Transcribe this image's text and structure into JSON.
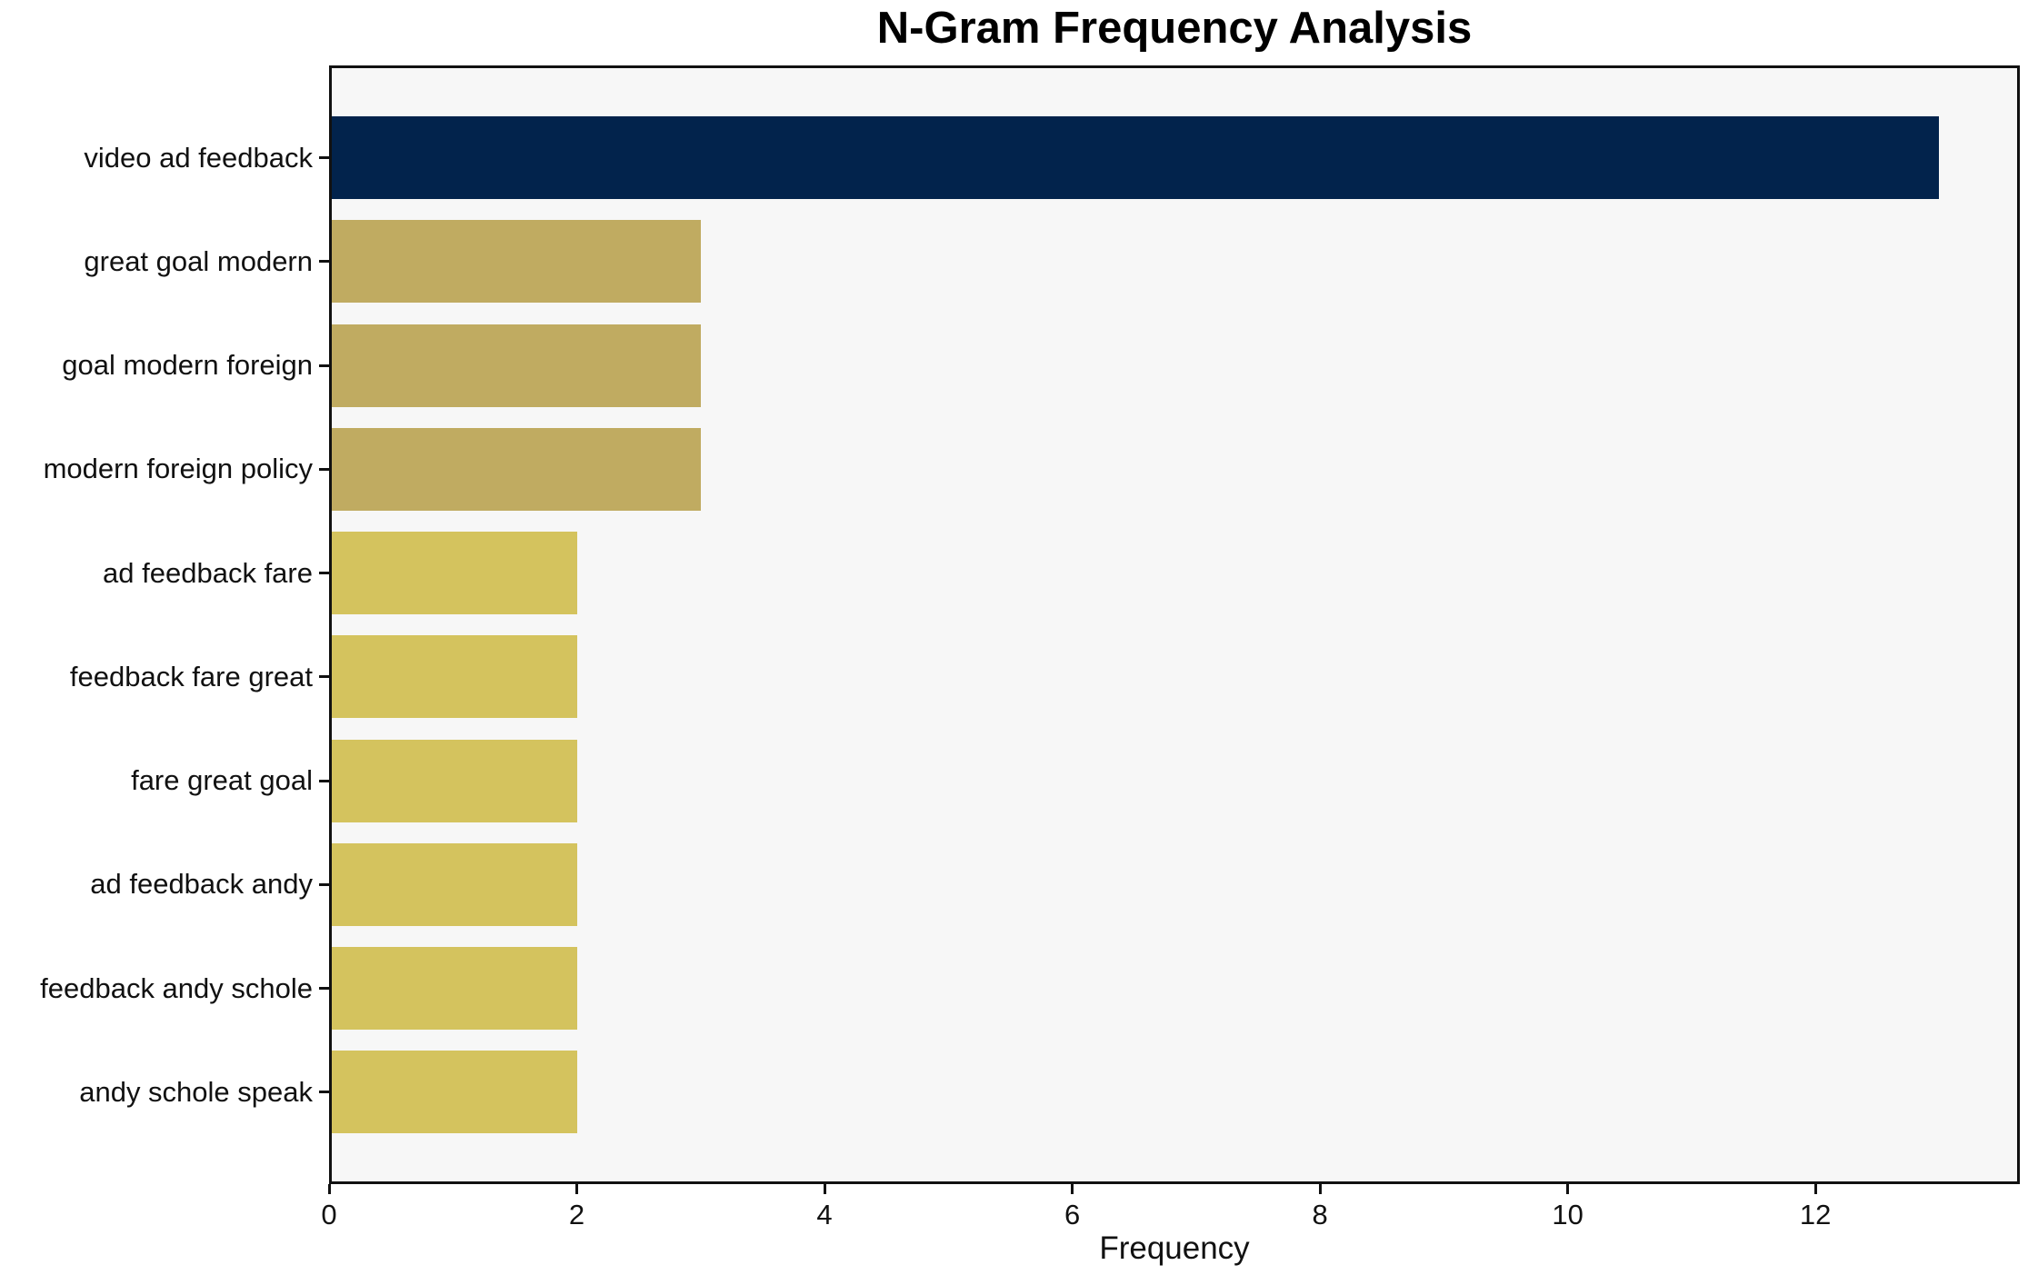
{
  "chart_data": {
    "type": "bar",
    "orientation": "horizontal",
    "title": "N-Gram Frequency Analysis",
    "xlabel": "Frequency",
    "ylabel": "",
    "categories": [
      "video ad feedback",
      "great goal modern",
      "goal modern foreign",
      "modern foreign policy",
      "ad feedback fare",
      "feedback fare great",
      "fare great goal",
      "ad feedback andy",
      "feedback andy schole",
      "andy schole speak"
    ],
    "values": [
      13,
      3,
      3,
      3,
      2,
      2,
      2,
      2,
      2,
      2
    ],
    "bar_colors": [
      "#02234C",
      "#C0AB61",
      "#C0AB61",
      "#C0AB61",
      "#D4C35E",
      "#D4C35E",
      "#D4C35E",
      "#D4C35E",
      "#D4C35E",
      "#D4C35E"
    ],
    "xlim": [
      0,
      13.65
    ],
    "xticks": [
      0,
      2,
      4,
      6,
      8,
      10,
      12
    ],
    "grid": false,
    "legend": null,
    "colors": {
      "figure_background": "#FFFFFF",
      "plot_background": "#F7F7F7",
      "spine": "#111111",
      "text": "#111111"
    }
  }
}
